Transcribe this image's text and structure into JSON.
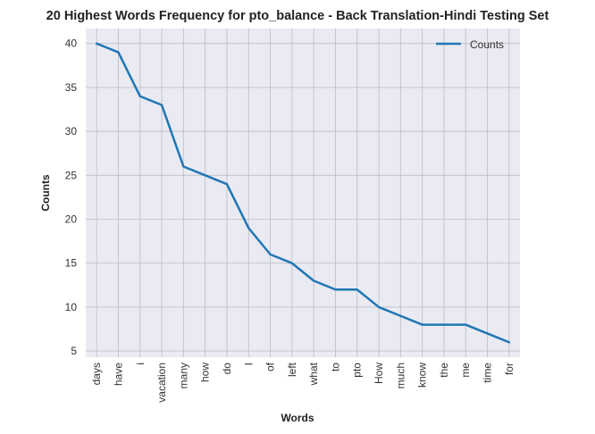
{
  "chart_data": {
    "type": "line",
    "title": "20 Highest Words Frequency for pto_balance - Back Translation-Hindi Testing Set",
    "xlabel": "Words",
    "ylabel": "Counts",
    "categories": [
      "days",
      "have",
      "i",
      "vacation",
      "many",
      "how",
      "do",
      "I",
      "of",
      "left",
      "what",
      "to",
      "pto",
      "How",
      "much",
      "know",
      "the",
      "me",
      "time",
      "for"
    ],
    "series": [
      {
        "name": "Counts",
        "values": [
          40,
          39,
          34,
          33,
          26,
          25,
          24,
          19,
          16,
          15,
          13,
          12,
          12,
          10,
          9,
          8,
          8,
          8,
          7,
          6
        ]
      }
    ],
    "ylim": [
      4.3,
      41.7
    ],
    "yticks": [
      5,
      10,
      15,
      20,
      25,
      30,
      35,
      40
    ],
    "grid": true,
    "legend": "top-right",
    "colors": {
      "line": "#1f77b4",
      "plot_bg": "#eaeaf2",
      "grid": "#c0c0c8"
    }
  }
}
